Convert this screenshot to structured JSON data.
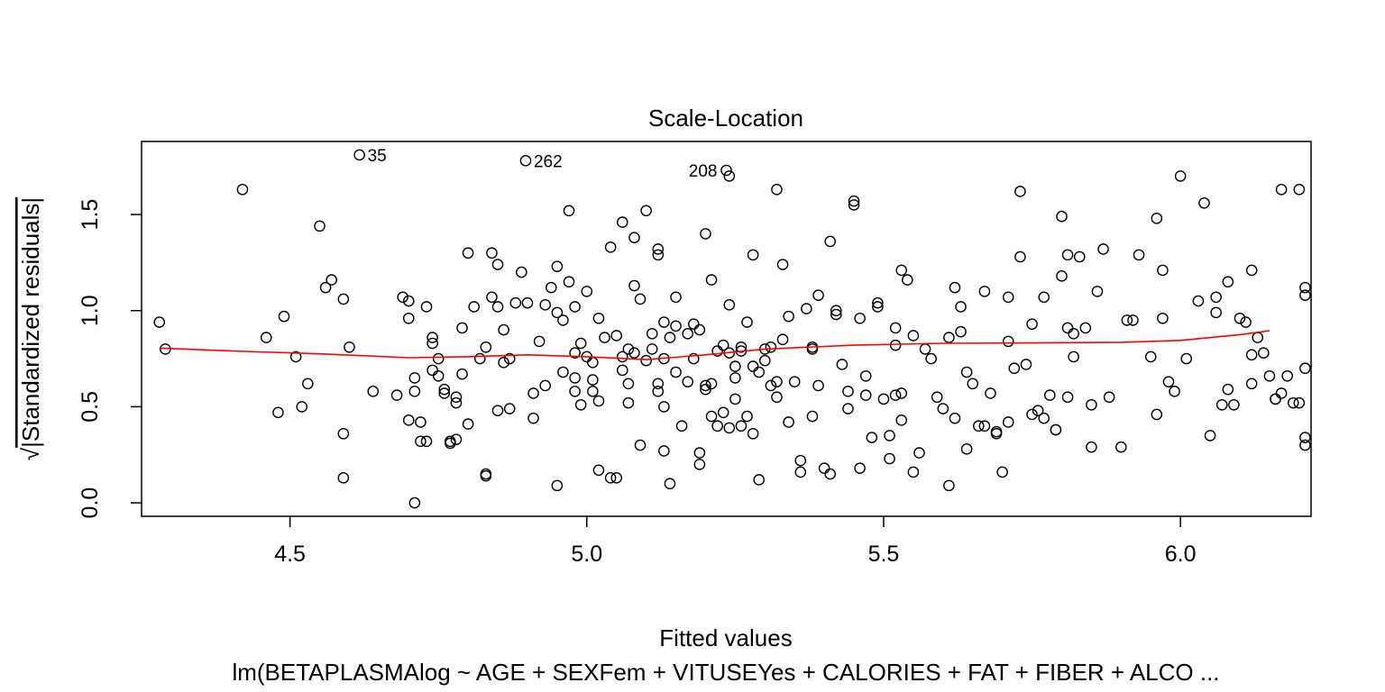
{
  "chart_data": {
    "type": "scatter",
    "title": "Scale-Location",
    "xlabel": "Fitted values",
    "ylabel": "√|Standardized residuals|",
    "ylabel_radical": "√",
    "ylabel_text": "|Standardized residuals|",
    "subtitle": "lm(BETAPLASMAlog ~ AGE + SEXFem + VITUSEYes + CALORIES + FAT + FIBER + ALCO ...",
    "xlim": [
      4.25,
      6.22
    ],
    "ylim": [
      -0.07,
      1.88
    ],
    "x_ticks": [
      4.5,
      5.0,
      5.5,
      6.0
    ],
    "x_tick_labels": [
      "4.5",
      "5.0",
      "5.5",
      "6.0"
    ],
    "y_ticks": [
      0.0,
      0.5,
      1.0,
      1.5
    ],
    "y_tick_labels": [
      "0.0",
      "0.5",
      "1.0",
      "1.5"
    ],
    "grid": false,
    "point_color": "#000000",
    "smooth_color": "#ff0000",
    "labeled_points": [
      {
        "label": "35",
        "x": 4.617,
        "y": 1.81
      },
      {
        "label": "262",
        "x": 4.897,
        "y": 1.78
      },
      {
        "label": "208",
        "x": 5.235,
        "y": 1.73
      }
    ],
    "points": [
      [
        4.28,
        0.94
      ],
      [
        4.29,
        0.8
      ],
      [
        4.42,
        1.63
      ],
      [
        4.46,
        0.86
      ],
      [
        4.48,
        0.47
      ],
      [
        4.49,
        0.97
      ],
      [
        4.51,
        0.76
      ],
      [
        4.52,
        0.5
      ],
      [
        4.53,
        0.62
      ],
      [
        4.55,
        1.44
      ],
      [
        4.56,
        1.12
      ],
      [
        4.57,
        1.16
      ],
      [
        4.59,
        1.06
      ],
      [
        4.59,
        0.36
      ],
      [
        4.59,
        0.13
      ],
      [
        4.6,
        0.81
      ],
      [
        4.64,
        0.58
      ],
      [
        4.68,
        0.56
      ],
      [
        4.69,
        1.07
      ],
      [
        4.7,
        1.05
      ],
      [
        4.7,
        0.96
      ],
      [
        4.7,
        0.43
      ],
      [
        4.71,
        0.65
      ],
      [
        4.71,
        0.58
      ],
      [
        4.71,
        0.0
      ],
      [
        4.72,
        0.42
      ],
      [
        4.72,
        0.32
      ],
      [
        4.73,
        0.32
      ],
      [
        4.73,
        1.02
      ],
      [
        4.74,
        0.83
      ],
      [
        4.74,
        0.86
      ],
      [
        4.74,
        0.69
      ],
      [
        4.75,
        0.75
      ],
      [
        4.75,
        0.66
      ],
      [
        4.76,
        0.57
      ],
      [
        4.76,
        0.59
      ],
      [
        4.77,
        0.31
      ],
      [
        4.77,
        0.32
      ],
      [
        4.78,
        0.33
      ],
      [
        4.78,
        0.55
      ],
      [
        4.78,
        0.52
      ],
      [
        4.79,
        0.91
      ],
      [
        4.79,
        0.67
      ],
      [
        4.8,
        0.41
      ],
      [
        4.8,
        1.3
      ],
      [
        4.81,
        1.02
      ],
      [
        4.82,
        0.75
      ],
      [
        4.83,
        0.81
      ],
      [
        4.83,
        0.15
      ],
      [
        4.83,
        0.14
      ],
      [
        4.84,
        1.07
      ],
      [
        4.84,
        1.3
      ],
      [
        4.85,
        1.24
      ],
      [
        4.85,
        1.02
      ],
      [
        4.85,
        0.48
      ],
      [
        4.86,
        0.73
      ],
      [
        4.86,
        0.9
      ],
      [
        4.87,
        0.49
      ],
      [
        4.87,
        0.75
      ],
      [
        4.88,
        1.04
      ],
      [
        4.89,
        1.2
      ],
      [
        4.9,
        1.04
      ],
      [
        4.91,
        0.57
      ],
      [
        4.91,
        0.44
      ],
      [
        4.92,
        0.84
      ],
      [
        4.93,
        1.03
      ],
      [
        4.93,
        0.61
      ],
      [
        4.94,
        1.12
      ],
      [
        4.95,
        0.99
      ],
      [
        4.95,
        1.23
      ],
      [
        4.95,
        0.09
      ],
      [
        4.96,
        0.68
      ],
      [
        4.96,
        0.95
      ],
      [
        4.97,
        1.52
      ],
      [
        4.97,
        1.15
      ],
      [
        4.98,
        0.65
      ],
      [
        4.98,
        0.78
      ],
      [
        4.98,
        0.58
      ],
      [
        4.98,
        1.02
      ],
      [
        4.99,
        0.51
      ],
      [
        4.99,
        0.83
      ],
      [
        5.0,
        1.1
      ],
      [
        5.0,
        0.76
      ],
      [
        5.01,
        0.73
      ],
      [
        5.01,
        0.64
      ],
      [
        5.01,
        0.58
      ],
      [
        5.02,
        0.53
      ],
      [
        5.02,
        0.17
      ],
      [
        5.02,
        0.96
      ],
      [
        5.03,
        0.86
      ],
      [
        5.04,
        0.13
      ],
      [
        5.04,
        1.33
      ],
      [
        5.05,
        0.13
      ],
      [
        5.05,
        0.87
      ],
      [
        5.06,
        1.46
      ],
      [
        5.06,
        0.76
      ],
      [
        5.06,
        0.69
      ],
      [
        5.07,
        0.62
      ],
      [
        5.07,
        0.8
      ],
      [
        5.07,
        0.52
      ],
      [
        5.08,
        1.13
      ],
      [
        5.08,
        1.38
      ],
      [
        5.08,
        0.78
      ],
      [
        5.09,
        0.3
      ],
      [
        5.09,
        1.06
      ],
      [
        5.1,
        0.74
      ],
      [
        5.1,
        1.52
      ],
      [
        5.11,
        0.88
      ],
      [
        5.11,
        0.8
      ],
      [
        5.12,
        1.29
      ],
      [
        5.12,
        1.32
      ],
      [
        5.12,
        0.58
      ],
      [
        5.12,
        0.62
      ],
      [
        5.13,
        0.27
      ],
      [
        5.13,
        0.5
      ],
      [
        5.13,
        0.94
      ],
      [
        5.13,
        0.75
      ],
      [
        5.14,
        0.86
      ],
      [
        5.14,
        0.1
      ],
      [
        5.15,
        0.92
      ],
      [
        5.15,
        0.68
      ],
      [
        5.15,
        1.07
      ],
      [
        5.16,
        0.4
      ],
      [
        5.17,
        0.63
      ],
      [
        5.17,
        0.88
      ],
      [
        5.18,
        0.75
      ],
      [
        5.18,
        0.93
      ],
      [
        5.19,
        0.9
      ],
      [
        5.19,
        0.26
      ],
      [
        5.19,
        0.2
      ],
      [
        5.2,
        1.4
      ],
      [
        5.2,
        0.61
      ],
      [
        5.2,
        0.59
      ],
      [
        5.21,
        0.45
      ],
      [
        5.21,
        1.16
      ],
      [
        5.21,
        0.62
      ],
      [
        5.22,
        0.79
      ],
      [
        5.22,
        0.4
      ],
      [
        5.23,
        0.82
      ],
      [
        5.23,
        0.47
      ],
      [
        5.24,
        0.39
      ],
      [
        5.24,
        1.7
      ],
      [
        5.24,
        1.03
      ],
      [
        5.24,
        0.78
      ],
      [
        5.25,
        0.54
      ],
      [
        5.25,
        0.65
      ],
      [
        5.25,
        0.71
      ],
      [
        5.26,
        0.79
      ],
      [
        5.26,
        0.4
      ],
      [
        5.26,
        0.81
      ],
      [
        5.27,
        0.45
      ],
      [
        5.27,
        0.94
      ],
      [
        5.28,
        0.71
      ],
      [
        5.28,
        1.29
      ],
      [
        5.28,
        0.36
      ],
      [
        5.29,
        0.68
      ],
      [
        5.29,
        0.12
      ],
      [
        5.3,
        0.8
      ],
      [
        5.3,
        0.74
      ],
      [
        5.31,
        0.61
      ],
      [
        5.31,
        0.81
      ],
      [
        5.32,
        1.63
      ],
      [
        5.32,
        0.63
      ],
      [
        5.32,
        0.55
      ],
      [
        5.33,
        0.85
      ],
      [
        5.33,
        1.24
      ],
      [
        5.34,
        0.97
      ],
      [
        5.34,
        0.42
      ],
      [
        5.35,
        0.63
      ],
      [
        5.36,
        0.16
      ],
      [
        5.36,
        0.22
      ],
      [
        5.37,
        1.01
      ],
      [
        5.38,
        0.8
      ],
      [
        5.38,
        0.45
      ],
      [
        5.38,
        0.81
      ],
      [
        5.39,
        1.08
      ],
      [
        5.39,
        0.61
      ],
      [
        5.4,
        0.18
      ],
      [
        5.41,
        0.15
      ],
      [
        5.41,
        1.36
      ],
      [
        5.42,
        1.0
      ],
      [
        5.42,
        0.98
      ],
      [
        5.43,
        0.72
      ],
      [
        5.44,
        0.49
      ],
      [
        5.44,
        0.58
      ],
      [
        5.45,
        1.57
      ],
      [
        5.45,
        1.55
      ],
      [
        5.46,
        0.96
      ],
      [
        5.46,
        0.18
      ],
      [
        5.47,
        0.66
      ],
      [
        5.47,
        0.56
      ],
      [
        5.48,
        0.34
      ],
      [
        5.49,
        1.04
      ],
      [
        5.49,
        1.02
      ],
      [
        5.5,
        0.54
      ],
      [
        5.51,
        0.23
      ],
      [
        5.51,
        0.35
      ],
      [
        5.52,
        0.82
      ],
      [
        5.52,
        0.91
      ],
      [
        5.52,
        0.56
      ],
      [
        5.53,
        0.43
      ],
      [
        5.53,
        0.57
      ],
      [
        5.53,
        1.21
      ],
      [
        5.54,
        1.16
      ],
      [
        5.55,
        0.87
      ],
      [
        5.55,
        0.16
      ],
      [
        5.56,
        0.26
      ],
      [
        5.57,
        0.8
      ],
      [
        5.58,
        0.75
      ],
      [
        5.59,
        0.55
      ],
      [
        5.6,
        0.49
      ],
      [
        5.61,
        0.86
      ],
      [
        5.61,
        0.09
      ],
      [
        5.62,
        0.44
      ],
      [
        5.62,
        1.12
      ],
      [
        5.63,
        0.89
      ],
      [
        5.63,
        1.02
      ],
      [
        5.64,
        0.68
      ],
      [
        5.64,
        0.28
      ],
      [
        5.65,
        0.62
      ],
      [
        5.66,
        0.4
      ],
      [
        5.67,
        1.1
      ],
      [
        5.67,
        0.4
      ],
      [
        5.68,
        0.57
      ],
      [
        5.69,
        0.36
      ],
      [
        5.69,
        0.37
      ],
      [
        5.7,
        0.16
      ],
      [
        5.71,
        0.42
      ],
      [
        5.71,
        1.07
      ],
      [
        5.71,
        0.84
      ],
      [
        5.72,
        0.7
      ],
      [
        5.73,
        1.62
      ],
      [
        5.73,
        1.28
      ],
      [
        5.74,
        0.72
      ],
      [
        5.75,
        0.46
      ],
      [
        5.75,
        0.93
      ],
      [
        5.76,
        0.48
      ],
      [
        5.77,
        0.44
      ],
      [
        5.77,
        1.07
      ],
      [
        5.78,
        0.56
      ],
      [
        5.79,
        0.38
      ],
      [
        5.79,
        0.38
      ],
      [
        5.8,
        1.18
      ],
      [
        5.8,
        1.49
      ],
      [
        5.81,
        0.91
      ],
      [
        5.81,
        0.55
      ],
      [
        5.81,
        1.29
      ],
      [
        5.82,
        0.76
      ],
      [
        5.82,
        0.88
      ],
      [
        5.83,
        1.28
      ],
      [
        5.84,
        0.91
      ],
      [
        5.85,
        0.29
      ],
      [
        5.85,
        0.51
      ],
      [
        5.86,
        1.1
      ],
      [
        5.87,
        1.32
      ],
      [
        5.88,
        0.55
      ],
      [
        5.9,
        0.29
      ],
      [
        5.91,
        0.95
      ],
      [
        5.92,
        0.95
      ],
      [
        5.93,
        1.29
      ],
      [
        5.95,
        0.76
      ],
      [
        5.96,
        0.46
      ],
      [
        5.96,
        1.48
      ],
      [
        5.97,
        0.96
      ],
      [
        5.97,
        1.21
      ],
      [
        5.98,
        0.63
      ],
      [
        5.99,
        0.58
      ],
      [
        6.0,
        1.7
      ],
      [
        6.01,
        0.75
      ],
      [
        6.03,
        1.05
      ],
      [
        6.04,
        1.56
      ],
      [
        6.05,
        0.35
      ],
      [
        6.06,
        1.07
      ],
      [
        6.06,
        0.99
      ],
      [
        6.07,
        0.51
      ],
      [
        6.08,
        0.59
      ],
      [
        6.08,
        1.15
      ],
      [
        6.09,
        0.51
      ],
      [
        6.1,
        0.96
      ],
      [
        6.11,
        0.94
      ],
      [
        6.12,
        0.62
      ],
      [
        6.12,
        1.21
      ],
      [
        6.12,
        0.77
      ],
      [
        6.13,
        0.86
      ],
      [
        6.14,
        0.78
      ],
      [
        6.15,
        0.66
      ],
      [
        6.16,
        0.54
      ],
      [
        6.16,
        0.54
      ],
      [
        6.17,
        0.57
      ],
      [
        6.17,
        1.63
      ],
      [
        6.18,
        0.66
      ],
      [
        6.19,
        0.52
      ],
      [
        6.2,
        1.63
      ],
      [
        6.2,
        0.52
      ],
      [
        6.21,
        1.08
      ],
      [
        6.21,
        0.34
      ],
      [
        6.21,
        0.3
      ],
      [
        6.21,
        1.12
      ],
      [
        6.21,
        0.7
      ]
    ],
    "smooth_line": [
      [
        4.28,
        0.805
      ],
      [
        4.4,
        0.79
      ],
      [
        4.55,
        0.775
      ],
      [
        4.7,
        0.755
      ],
      [
        4.8,
        0.76
      ],
      [
        4.9,
        0.77
      ],
      [
        5.0,
        0.76
      ],
      [
        5.1,
        0.745
      ],
      [
        5.2,
        0.77
      ],
      [
        5.3,
        0.8
      ],
      [
        5.45,
        0.82
      ],
      [
        5.6,
        0.83
      ],
      [
        5.75,
        0.832
      ],
      [
        5.9,
        0.835
      ],
      [
        6.0,
        0.845
      ],
      [
        6.1,
        0.875
      ],
      [
        6.15,
        0.895
      ]
    ]
  }
}
